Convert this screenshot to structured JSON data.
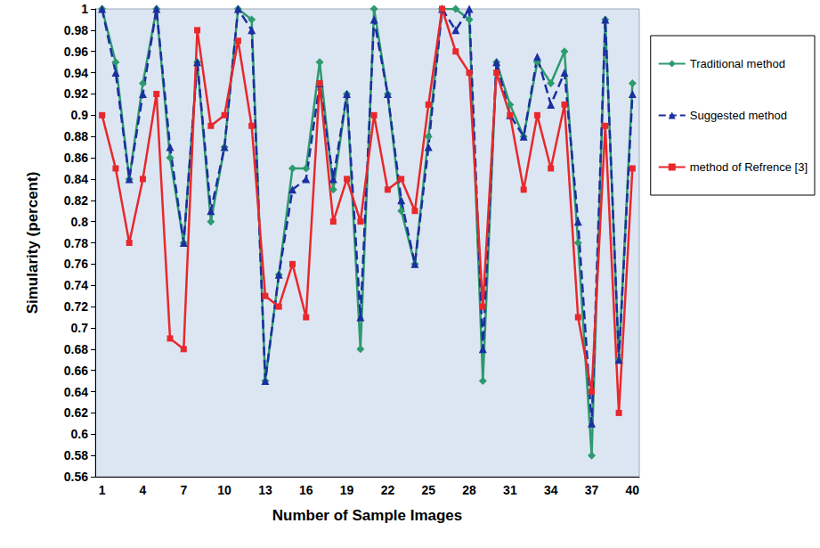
{
  "chart_data": {
    "type": "line",
    "x_label": "Number of Sample Images",
    "y_label": "Simularity (percent)",
    "categories": [
      1,
      null,
      null,
      4,
      null,
      null,
      7,
      null,
      null,
      10,
      null,
      null,
      13,
      null,
      null,
      16,
      null,
      null,
      19,
      null,
      null,
      22,
      null,
      null,
      25,
      null,
      null,
      28,
      null,
      null,
      31,
      null,
      null,
      34,
      null,
      null,
      37,
      null,
      null,
      40
    ],
    "series": [
      {
        "name": "Traditional method",
        "color": "#2e9a6e",
        "marker": "diamond",
        "line_style": "solid",
        "values": [
          1.0,
          0.95,
          0.84,
          0.93,
          1.0,
          0.86,
          0.78,
          0.95,
          0.8,
          0.87,
          1.0,
          0.99,
          0.65,
          0.75,
          0.85,
          0.85,
          0.95,
          0.83,
          0.92,
          0.68,
          1.0,
          0.92,
          0.81,
          0.76,
          0.88,
          1.0,
          1.0,
          0.99,
          0.65,
          0.95,
          0.91,
          0.88,
          0.95,
          0.93,
          0.96,
          0.78,
          0.58,
          0.99,
          0.67,
          0.93
        ]
      },
      {
        "name": "Suggested method",
        "color": "#1a2fa0",
        "marker": "triangle",
        "line_style": "dashed",
        "values": [
          1.0,
          0.94,
          0.84,
          0.92,
          1.0,
          0.87,
          0.78,
          0.95,
          0.81,
          0.87,
          1.0,
          0.98,
          0.65,
          0.75,
          0.83,
          0.84,
          0.93,
          0.84,
          0.92,
          0.71,
          0.99,
          0.92,
          0.82,
          0.76,
          0.87,
          1.0,
          0.98,
          1.0,
          0.68,
          0.95,
          0.9,
          0.88,
          0.955,
          0.91,
          0.94,
          0.8,
          0.61,
          0.99,
          0.67,
          0.92
        ]
      },
      {
        "name": "method of Refrence [3]",
        "color": "#e8282c",
        "marker": "square",
        "line_style": "solid",
        "values": [
          0.9,
          0.85,
          0.78,
          0.84,
          0.92,
          0.69,
          0.68,
          0.98,
          0.89,
          0.9,
          0.97,
          0.89,
          0.73,
          0.72,
          0.76,
          0.71,
          0.93,
          0.8,
          0.84,
          0.8,
          0.9,
          0.83,
          0.84,
          0.81,
          0.91,
          1.0,
          0.96,
          0.94,
          0.72,
          0.94,
          0.9,
          0.83,
          0.9,
          0.85,
          0.91,
          0.71,
          0.64,
          0.89,
          0.62,
          0.85
        ]
      }
    ],
    "ylim": [
      0.56,
      1
    ],
    "yticks": [
      0.56,
      0.58,
      0.6,
      0.62,
      0.64,
      0.66,
      0.68,
      0.7,
      0.72,
      0.74,
      0.76,
      0.78,
      0.8,
      0.82,
      0.84,
      0.86,
      0.88,
      0.9,
      0.92,
      0.94,
      0.96,
      0.98,
      1
    ],
    "grid": false,
    "legend": "right"
  }
}
